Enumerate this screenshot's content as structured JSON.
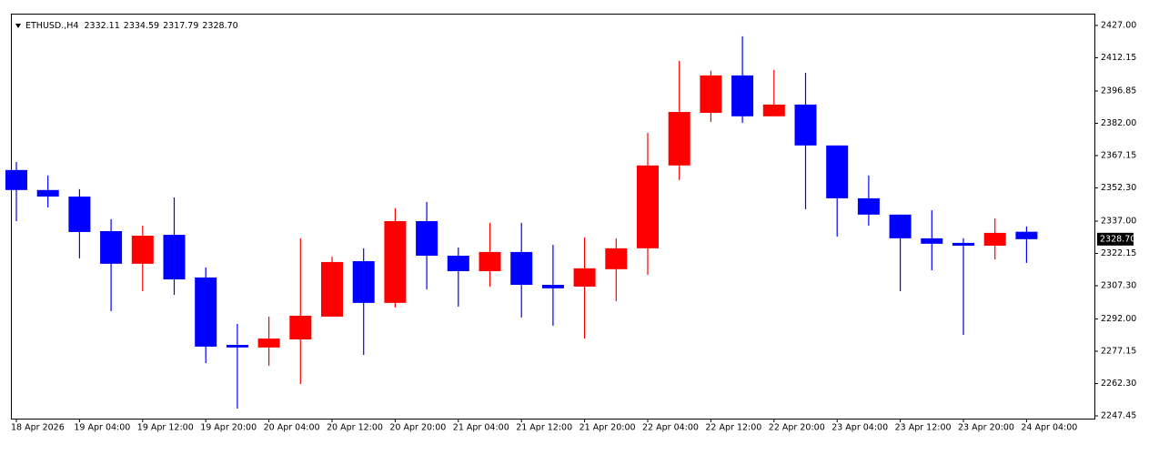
{
  "chart_data": {
    "type": "candlestick",
    "header": {
      "symbol": "ETHUSD.,H4",
      "ohlc": [
        "2332.11",
        "2334.59",
        "2317.79",
        "2328.70"
      ]
    },
    "categories": [
      "18 Apr 2026",
      null,
      "19 Apr 04:00",
      null,
      "19 Apr 12:00",
      null,
      "19 Apr 20:00",
      null,
      "20 Apr 04:00",
      null,
      "20 Apr 12:00",
      null,
      "20 Apr 20:00",
      null,
      "21 Apr 04:00",
      null,
      "21 Apr 12:00",
      null,
      "21 Apr 20:00",
      null,
      "22 Apr 04:00",
      null,
      "22 Apr 12:00",
      null,
      "22 Apr 20:00",
      null,
      "23 Apr 04:00",
      null,
      "23 Apr 12:00",
      null,
      "23 Apr 20:00",
      null,
      "24 Apr 04:00"
    ],
    "open": [
      2360.5,
      2351.3,
      2348.3,
      2332.4,
      2317.4,
      2330.7,
      2311.1,
      2280.1,
      2278.9,
      2282.6,
      2293.1,
      2318.6,
      2299.4,
      2337.0,
      2321.1,
      2314.0,
      2322.8,
      2307.7,
      2306.9,
      2314.9,
      2324.5,
      2362.6,
      2386.8,
      2404.0,
      2385.2,
      2390.6,
      2371.8,
      2347.5,
      2340.0,
      2329.1,
      2327.0,
      2325.7,
      2332.11
    ],
    "high": [
      2364.2,
      2358.0,
      2351.7,
      2337.9,
      2334.9,
      2347.9,
      2315.7,
      2289.7,
      2293.1,
      2329.1,
      2320.7,
      2324.5,
      2342.9,
      2345.8,
      2324.9,
      2336.2,
      2336.2,
      2326.1,
      2329.5,
      2329.1,
      2377.6,
      2410.7,
      2406.1,
      2422.0,
      2406.5,
      2405.2,
      2371.8,
      2358.0,
      2340.0,
      2342.0,
      2329.1,
      2338.3,
      2334.59
    ],
    "low": [
      2337.0,
      2343.3,
      2319.9,
      2295.6,
      2304.8,
      2303.1,
      2271.7,
      2250.8,
      2270.5,
      2262.1,
      2293.1,
      2275.5,
      2297.3,
      2305.6,
      2297.7,
      2306.9,
      2292.7,
      2288.9,
      2283.0,
      2300.2,
      2312.3,
      2355.9,
      2382.6,
      2382.2,
      2385.2,
      2342.5,
      2329.9,
      2334.9,
      2304.8,
      2314.4,
      2284.7,
      2319.4,
      2317.79
    ],
    "close": [
      2351.3,
      2348.3,
      2332.0,
      2317.4,
      2330.3,
      2310.2,
      2279.3,
      2278.9,
      2283.0,
      2293.5,
      2318.2,
      2299.4,
      2337.0,
      2321.1,
      2314.0,
      2322.8,
      2307.7,
      2306.1,
      2315.3,
      2324.5,
      2362.6,
      2387.2,
      2404.0,
      2385.2,
      2390.6,
      2371.8,
      2347.5,
      2340.0,
      2329.1,
      2326.6,
      2325.7,
      2331.6,
      2328.7
    ],
    "up_color": "#ff0000",
    "down_color": "#0000ff",
    "ylim": [
      2246.2,
      2432.4
    ],
    "yticks": [
      {
        "value": 2427.0,
        "label": "2427.00"
      },
      {
        "value": 2412.15,
        "label": "2412.15"
      },
      {
        "value": 2396.85,
        "label": "2396.85"
      },
      {
        "value": 2382.0,
        "label": "2382.00"
      },
      {
        "value": 2367.15,
        "label": "2367.15"
      },
      {
        "value": 2352.3,
        "label": "2352.30"
      },
      {
        "value": 2337.0,
        "label": "2337.00"
      },
      {
        "value": 2322.15,
        "label": "2322.15"
      },
      {
        "value": 2307.3,
        "label": "2307.30"
      },
      {
        "value": 2292.0,
        "label": "2292.00"
      },
      {
        "value": 2277.15,
        "label": "2277.15"
      },
      {
        "value": 2262.3,
        "label": "2262.30"
      },
      {
        "value": 2247.45,
        "label": "2247.45"
      }
    ],
    "current_price": {
      "value": 2328.7,
      "label": "2328.70"
    },
    "grid": false
  }
}
